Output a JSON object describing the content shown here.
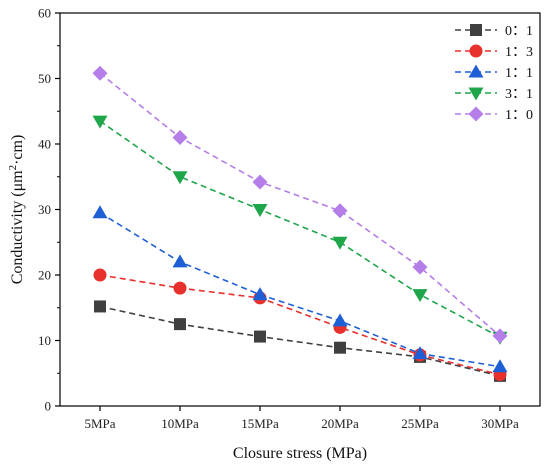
{
  "chart_data": {
    "type": "line",
    "title": "",
    "xlabel": "Closure stress (MPa)",
    "ylabel_parts": {
      "main": "Conductivity (μm",
      "sup": "2",
      "rest": "·cm)"
    },
    "categories": [
      "5MPa",
      "10MPa",
      "15MPa",
      "20MPa",
      "25MPa",
      "30MPa"
    ],
    "ylim": [
      0,
      60
    ],
    "yticks": [
      0,
      10,
      20,
      30,
      40,
      50,
      60
    ],
    "grid": false,
    "legend_position": "top-right",
    "series": [
      {
        "name": "0：1",
        "color": "#404040",
        "marker": "square",
        "values": [
          15.2,
          12.5,
          10.6,
          8.9,
          7.5,
          4.6
        ]
      },
      {
        "name": "1：3",
        "color": "#e8302c",
        "marker": "circle",
        "values": [
          20.0,
          18.0,
          16.5,
          12.0,
          7.8,
          4.8
        ]
      },
      {
        "name": "1：1",
        "color": "#1f5fd6",
        "marker": "triangle-up",
        "values": [
          29.5,
          22.0,
          17.0,
          13.0,
          8.0,
          6.0
        ]
      },
      {
        "name": "3：1",
        "color": "#1fa64a",
        "marker": "triangle-down",
        "values": [
          43.5,
          35.0,
          30.0,
          25.0,
          17.0,
          10.5
        ]
      },
      {
        "name": "1：0",
        "color": "#b57ee8",
        "marker": "diamond",
        "values": [
          50.8,
          41.0,
          34.2,
          29.8,
          21.2,
          10.7
        ]
      }
    ]
  }
}
